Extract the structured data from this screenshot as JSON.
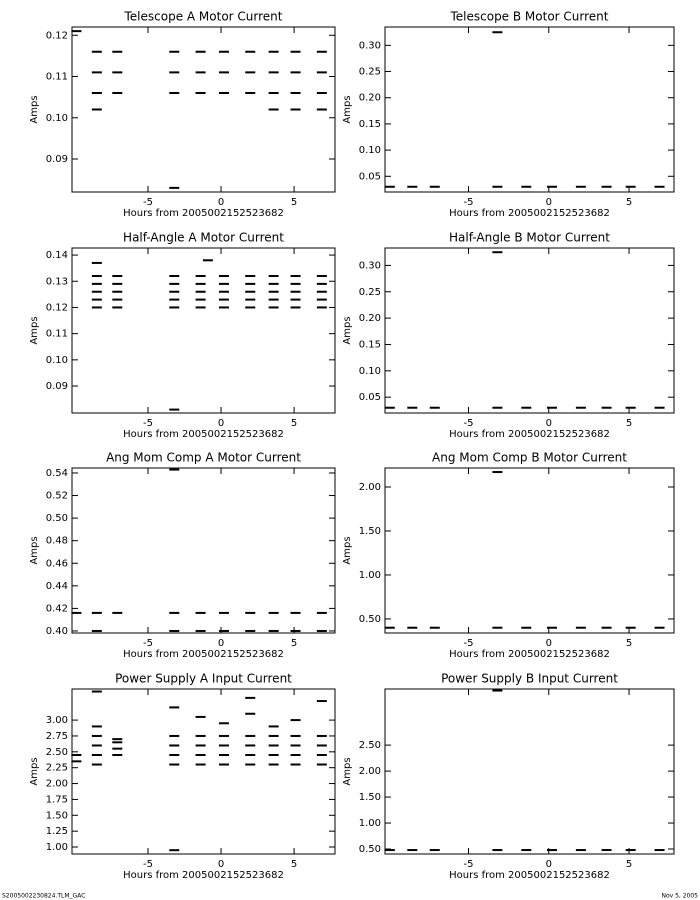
{
  "chart_data": [
    {
      "type": "scatter",
      "title": "Telescope A Motor Current",
      "xlabel": "Hours from 2005002152523682",
      "ylabel": "Amps",
      "color": "#000000",
      "xlim": [
        -10.2,
        7.8
      ],
      "xticks": [
        -5,
        0,
        5
      ],
      "ylim": [
        0.082,
        0.122
      ],
      "yticks": [
        0.09,
        {
          "value": 0.1,
          "label": "0.10"
        },
        0.11,
        0.12
      ],
      "x": [
        -8.5,
        -7.1,
        -3.2,
        -1.4,
        0.2,
        2.0,
        3.6,
        5.1,
        6.9,
        -8.5,
        -7.1,
        -3.2,
        -1.4,
        0.2,
        2.0,
        3.6,
        5.1,
        6.9,
        -8.5,
        -7.1,
        -3.2,
        -1.4,
        0.2,
        2.0,
        3.6,
        5.1,
        6.9,
        3.6,
        5.1,
        6.9,
        -3.2,
        -9.9,
        -8.5
      ],
      "y": [
        0.116,
        0.116,
        0.116,
        0.116,
        0.116,
        0.116,
        0.116,
        0.116,
        0.116,
        0.111,
        0.111,
        0.111,
        0.111,
        0.111,
        0.111,
        0.111,
        0.111,
        0.111,
        0.106,
        0.106,
        0.106,
        0.106,
        0.106,
        0.106,
        0.106,
        0.106,
        0.106,
        0.102,
        0.102,
        0.102,
        0.083,
        0.121,
        0.102
      ]
    },
    {
      "type": "scatter",
      "title": "Telescope B Motor Current",
      "xlabel": "Hours from 2005002152523682",
      "ylabel": "Amps",
      "color": "#000000",
      "xlim": [
        -10.2,
        7.8
      ],
      "xticks": [
        -5,
        0,
        5
      ],
      "ylim": [
        0.02,
        0.335
      ],
      "yticks": [
        0.05,
        {
          "value": 0.1,
          "label": "0.10"
        },
        0.15,
        {
          "value": 0.2,
          "label": "0.20"
        },
        0.25,
        {
          "value": 0.3,
          "label": "0.30"
        }
      ],
      "x": [
        -9.9,
        -8.5,
        -7.1,
        -3.2,
        -1.4,
        0.2,
        2.0,
        3.6,
        5.1,
        6.9,
        -3.2
      ],
      "y": [
        0.03,
        0.03,
        0.03,
        0.03,
        0.03,
        0.03,
        0.03,
        0.03,
        0.03,
        0.03,
        0.325
      ]
    },
    {
      "type": "scatter",
      "title": "Half-Angle A Motor Current",
      "xlabel": "Hours from 2005002152523682",
      "ylabel": "Amps",
      "color": "#000000",
      "xlim": [
        -10.2,
        7.8
      ],
      "xticks": [
        -5,
        0,
        5
      ],
      "ylim": [
        0.0797,
        0.1427
      ],
      "yticks": [
        0.09,
        {
          "value": 0.1,
          "label": "0.10"
        },
        0.11,
        0.12,
        0.13,
        0.14
      ],
      "x": [
        -8.5,
        -7.1,
        -3.2,
        -1.4,
        0.2,
        2.0,
        3.6,
        5.1,
        6.9,
        -8.5,
        -7.1,
        -3.2,
        -1.4,
        0.2,
        2.0,
        3.6,
        5.1,
        6.9,
        -8.5,
        -7.1,
        -3.2,
        -1.4,
        0.2,
        2.0,
        3.6,
        5.1,
        6.9,
        -8.5,
        -7.1,
        -3.2,
        -1.4,
        0.2,
        2.0,
        3.6,
        5.1,
        6.9,
        -8.5,
        -7.1,
        -3.2,
        -1.4,
        0.2,
        2.0,
        3.6,
        5.1,
        6.9,
        -3.2,
        -8.5,
        -0.9
      ],
      "y": [
        0.12,
        0.12,
        0.12,
        0.12,
        0.12,
        0.12,
        0.12,
        0.12,
        0.12,
        0.123,
        0.123,
        0.123,
        0.123,
        0.123,
        0.123,
        0.123,
        0.123,
        0.123,
        0.126,
        0.126,
        0.126,
        0.126,
        0.126,
        0.126,
        0.126,
        0.126,
        0.126,
        0.129,
        0.129,
        0.129,
        0.129,
        0.129,
        0.129,
        0.129,
        0.129,
        0.129,
        0.132,
        0.132,
        0.132,
        0.132,
        0.132,
        0.132,
        0.132,
        0.132,
        0.132,
        0.081,
        0.137,
        0.138
      ]
    },
    {
      "type": "scatter",
      "title": "Half-Angle B Motor Current",
      "xlabel": "Hours from 2005002152523682",
      "ylabel": "Amps",
      "color": "#000000",
      "xlim": [
        -10.2,
        7.8
      ],
      "xticks": [
        -5,
        0,
        5
      ],
      "ylim": [
        0.02,
        0.333
      ],
      "yticks": [
        0.05,
        {
          "value": 0.1,
          "label": "0.10"
        },
        0.15,
        {
          "value": 0.2,
          "label": "0.20"
        },
        0.25,
        {
          "value": 0.3,
          "label": "0.30"
        }
      ],
      "x": [
        -9.9,
        -8.5,
        -7.1,
        -3.2,
        -1.4,
        0.2,
        2.0,
        3.6,
        5.1,
        6.9,
        -3.2
      ],
      "y": [
        0.03,
        0.03,
        0.03,
        0.03,
        0.03,
        0.03,
        0.03,
        0.03,
        0.03,
        0.03,
        0.325
      ]
    },
    {
      "type": "scatter",
      "title": "Ang Mom Comp A Motor Current",
      "xlabel": "Hours from 2005002152523682",
      "ylabel": "Amps",
      "color": "#000000",
      "xlim": [
        -10.2,
        7.8
      ],
      "xticks": [
        -5,
        0,
        5
      ],
      "ylim": [
        0.3982,
        0.5444
      ],
      "yticks": [
        {
          "value": 0.4,
          "label": "0.40"
        },
        0.42,
        0.44,
        0.46,
        0.48,
        {
          "value": 0.5,
          "label": "0.50"
        },
        0.52,
        0.54
      ],
      "x": [
        -8.5,
        -7.1,
        -3.2,
        -1.4,
        0.2,
        2.0,
        3.6,
        5.1,
        6.9,
        -8.5,
        -3.2,
        -1.4,
        0.2,
        2.0,
        3.6,
        5.1,
        6.9,
        -9.9,
        -3.2
      ],
      "y": [
        0.416,
        0.416,
        0.416,
        0.416,
        0.416,
        0.416,
        0.416,
        0.416,
        0.416,
        0.4,
        0.4,
        0.4,
        0.4,
        0.4,
        0.4,
        0.4,
        0.4,
        0.416,
        0.543
      ]
    },
    {
      "type": "scatter",
      "title": "Ang Mom Comp B Motor Current",
      "xlabel": "Hours from 2005002152523682",
      "ylabel": "Amps",
      "color": "#000000",
      "xlim": [
        -10.2,
        7.8
      ],
      "xticks": [
        -5,
        0,
        5
      ],
      "ylim": [
        0.34,
        2.216
      ],
      "yticks": [
        {
          "value": 0.5,
          "label": "0.50"
        },
        {
          "value": 1,
          "label": "1.00"
        },
        {
          "value": 1.5,
          "label": "1.50"
        },
        {
          "value": 2,
          "label": "2.00"
        }
      ],
      "x": [
        -9.9,
        -8.5,
        -7.1,
        -3.2,
        -1.4,
        0.2,
        2.0,
        3.6,
        5.1,
        6.9,
        -3.2
      ],
      "y": [
        0.4,
        0.4,
        0.4,
        0.4,
        0.4,
        0.4,
        0.4,
        0.4,
        0.4,
        0.4,
        2.17
      ]
    },
    {
      "type": "scatter",
      "title": "Power Supply A Input Current",
      "xlabel": "Hours from 2005002152523682",
      "ylabel": "Amps",
      "color": "#000000",
      "xlim": [
        -10.2,
        7.8
      ],
      "xticks": [
        -5,
        0,
        5
      ],
      "ylim": [
        0.89,
        3.49
      ],
      "yticks": [
        {
          "value": 1,
          "label": "1.00"
        },
        1.25,
        {
          "value": 1.5,
          "label": "1.50"
        },
        1.75,
        {
          "value": 2,
          "label": "2.00"
        },
        2.25,
        {
          "value": 2.5,
          "label": "2.50"
        },
        2.75,
        {
          "value": 3,
          "label": "3.00"
        }
      ],
      "x": [
        -8.5,
        -7.1,
        -3.2,
        -1.4,
        0.2,
        2.0,
        3.6,
        5.1,
        6.9,
        -8.5,
        -7.1,
        -3.2,
        -1.4,
        0.2,
        2.0,
        3.6,
        5.1,
        6.9,
        -8.5,
        -7.1,
        -3.2,
        -1.4,
        0.2,
        2.0,
        3.6,
        5.1,
        6.9,
        -8.5,
        -3.2,
        -1.4,
        0.2,
        2.0,
        3.6,
        5.1,
        6.9,
        -9.9,
        -9.9,
        -8.5,
        -8.5,
        -3.2,
        -3.2,
        -1.4,
        0.2,
        2.0,
        2.0,
        3.6,
        5.1,
        6.9,
        -7.1
      ],
      "y": [
        2.3,
        2.45,
        2.3,
        2.3,
        2.3,
        2.3,
        2.3,
        2.3,
        2.3,
        2.45,
        2.55,
        2.45,
        2.45,
        2.45,
        2.45,
        2.45,
        2.45,
        2.45,
        2.6,
        2.65,
        2.6,
        2.6,
        2.6,
        2.6,
        2.6,
        2.6,
        2.6,
        2.75,
        2.75,
        2.75,
        2.75,
        2.75,
        2.75,
        2.75,
        2.75,
        2.35,
        2.45,
        2.9,
        3.45,
        3.2,
        0.95,
        3.05,
        2.95,
        3.35,
        3.1,
        2.9,
        3.0,
        3.3,
        2.7
      ]
    },
    {
      "type": "scatter",
      "title": "Power Supply B Input Current",
      "xlabel": "Hours from 2005002152523682",
      "ylabel": "Amps",
      "color": "#000000",
      "xlim": [
        -10.2,
        7.8
      ],
      "xticks": [
        -5,
        0,
        5
      ],
      "ylim": [
        0.404,
        3.58
      ],
      "yticks": [
        {
          "value": 0.5,
          "label": "0.50"
        },
        {
          "value": 1,
          "label": "1.00"
        },
        {
          "value": 1.5,
          "label": "1.50"
        },
        {
          "value": 2,
          "label": "2.00"
        },
        {
          "value": 2.5,
          "label": "2.50"
        }
      ],
      "x": [
        -9.9,
        -8.5,
        -7.1,
        -3.2,
        -1.4,
        0.2,
        2.0,
        3.6,
        5.1,
        6.9,
        -3.2
      ],
      "y": [
        0.48,
        0.48,
        0.48,
        0.48,
        0.48,
        0.48,
        0.48,
        0.48,
        0.48,
        0.48,
        3.55
      ]
    }
  ],
  "footer": {
    "left": "S2005002230824.TLM_GAC",
    "right": "Nov 5, 2005"
  }
}
